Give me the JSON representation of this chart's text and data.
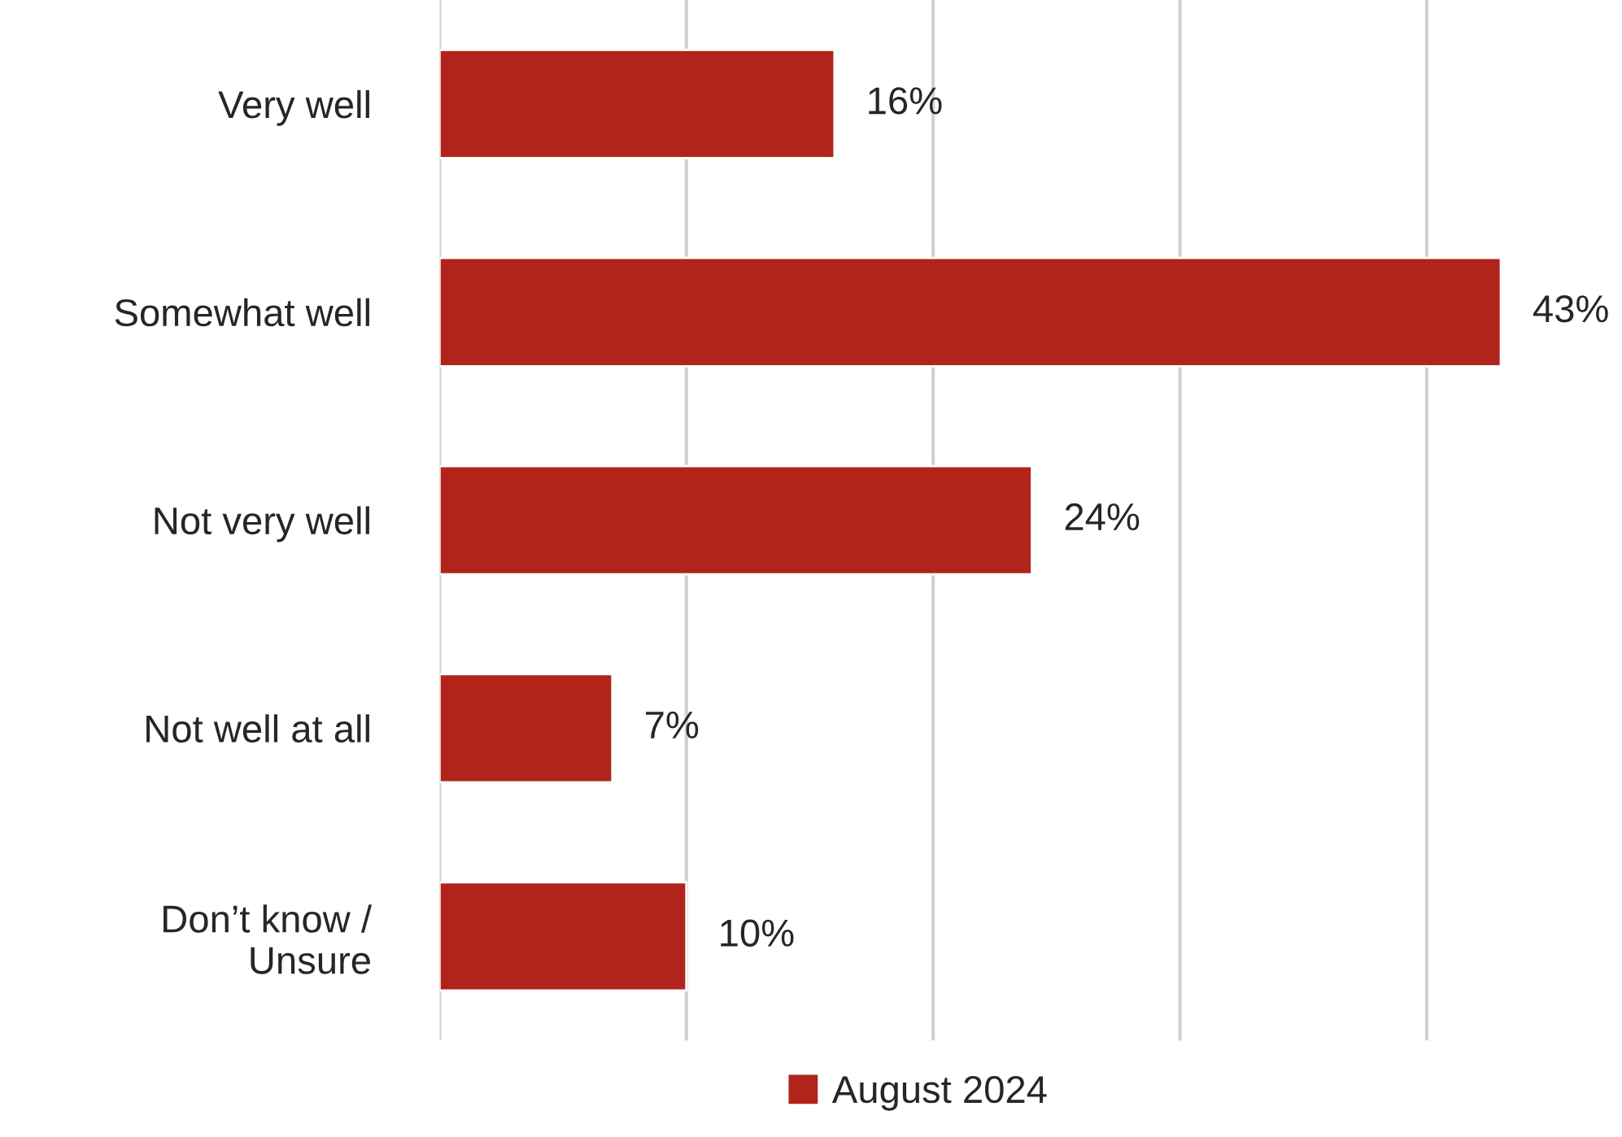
{
  "chart_data": {
    "type": "bar",
    "orientation": "horizontal",
    "categories": [
      "Very well",
      "Somewhat well",
      "Not very well",
      "Not well at all",
      "Don’t know /\nUnsure"
    ],
    "series": [
      {
        "name": "August 2024",
        "color": "#b0241b",
        "values": [
          16,
          43,
          24,
          7,
          10
        ],
        "value_labels": [
          "16%",
          "43%",
          "24%",
          "7%",
          "10%"
        ]
      }
    ],
    "tick_labels": "y",
    "grid": "x",
    "legend": "bottom"
  }
}
